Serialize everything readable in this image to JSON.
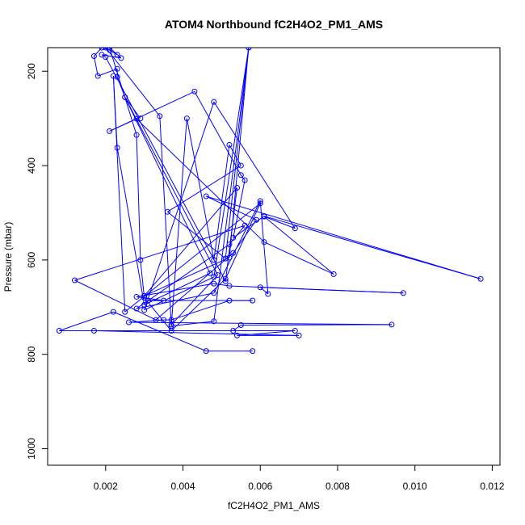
{
  "chart_data": {
    "type": "line",
    "title": "ATOM4 Northbound fC2H4O2_PM1_AMS",
    "xlabel": "fC2H4O2_PM1_AMS",
    "ylabel": "Pressure (mbar)",
    "xlim": [
      0.0005,
      0.0122
    ],
    "ylim": [
      1035,
      150
    ],
    "y_reversed": true,
    "grid": false,
    "markers": "open-circle",
    "line_color": "#0000ff",
    "x_ticks": [
      {
        "value": 0.002,
        "label": "0.002"
      },
      {
        "value": 0.004,
        "label": "0.004"
      },
      {
        "value": 0.006,
        "label": "0.006"
      },
      {
        "value": 0.008,
        "label": "0.008"
      },
      {
        "value": 0.01,
        "label": "0.010"
      },
      {
        "value": 0.012,
        "label": "0.012"
      }
    ],
    "y_ticks": [
      {
        "value": 200,
        "label": "200"
      },
      {
        "value": 400,
        "label": "400"
      },
      {
        "value": 600,
        "label": "600"
      },
      {
        "value": 800,
        "label": "800"
      },
      {
        "value": 1000,
        "label": "1000"
      }
    ],
    "series": [
      {
        "points": [
          [
            0.0058,
            793
          ],
          [
            0.0046,
            793
          ],
          [
            0.0022,
            710
          ],
          [
            0.0008,
            750
          ],
          [
            0.0069,
            750
          ],
          [
            0.0054,
            760
          ],
          [
            0.007,
            760
          ],
          [
            0.0017,
            750
          ],
          [
            0.0053,
            750
          ],
          [
            0.0055,
            738
          ],
          [
            0.0094,
            737
          ],
          [
            0.0026,
            732
          ],
          [
            0.0035,
            727
          ],
          [
            0.0037,
            727
          ],
          [
            0.0052,
            686
          ],
          [
            0.0058,
            686
          ],
          [
            0.0031,
            686
          ],
          [
            0.0035,
            686
          ],
          [
            0.0028,
            678
          ],
          [
            0.0048,
            650
          ],
          [
            0.0052,
            655
          ],
          [
            0.0097,
            670
          ],
          [
            0.006,
            658
          ],
          [
            0.0062,
            672
          ],
          [
            0.006,
            475
          ],
          [
            0.0048,
            670
          ],
          [
            0.0028,
            703
          ],
          [
            0.0052,
            567
          ],
          [
            0.0056,
            527
          ],
          [
            0.0012,
            643
          ],
          [
            0.0033,
            727
          ],
          [
            0.0053,
            585
          ],
          [
            0.0059,
            515
          ],
          [
            0.0046,
            465
          ],
          [
            0.0117,
            640
          ],
          [
            0.0061,
            507
          ],
          [
            0.0053,
            553
          ],
          [
            0.0056,
            431
          ],
          [
            0.0055,
            420
          ],
          [
            0.0043,
            243
          ],
          [
            0.0021,
            327
          ],
          [
            0.0028,
            301
          ],
          [
            0.0061,
            562
          ],
          [
            0.0079,
            630
          ],
          [
            0.0061,
            508
          ],
          [
            0.0069,
            533
          ],
          [
            0.0048,
            265
          ],
          [
            0.003,
            706
          ],
          [
            0.0048,
            636
          ],
          [
            0.0057,
            150
          ],
          [
            0.0051,
            597
          ],
          [
            0.0036,
            498
          ],
          [
            0.0055,
            400
          ],
          [
            0.0052,
            356
          ],
          [
            0.0048,
            600
          ],
          [
            0.0041,
            300
          ],
          [
            0.0037,
            737
          ],
          [
            0.0049,
            632
          ],
          [
            0.0025,
            255
          ],
          [
            0.0023,
            212
          ],
          [
            0.0023,
            195
          ],
          [
            0.0018,
            210
          ],
          [
            0.0017,
            168
          ],
          [
            0.0019,
            150
          ],
          [
            0.0021,
            155
          ],
          [
            0.0023,
            165
          ],
          [
            0.002,
            150
          ],
          [
            0.0034,
            295
          ],
          [
            0.0037,
            740
          ],
          [
            0.0048,
            730
          ],
          [
            0.0057,
            150
          ],
          [
            0.0052,
            595
          ],
          [
            0.003,
            676
          ],
          [
            0.0054,
            447
          ],
          [
            0.0051,
            645
          ],
          [
            0.002,
            170
          ],
          [
            0.0019,
            165
          ],
          [
            0.0024,
            172
          ],
          [
            0.0021,
            150
          ],
          [
            0.0028,
            335
          ],
          [
            0.0029,
            600
          ],
          [
            0.003,
            680
          ],
          [
            0.0037,
            750
          ],
          [
            0.0051,
            640
          ],
          [
            0.006,
            480
          ],
          [
            0.0025,
            710
          ],
          [
            0.0022,
            210
          ],
          [
            0.0023,
            362
          ],
          [
            0.003,
            695
          ],
          [
            0.0047,
            628
          ],
          [
            0.0025,
            255
          ],
          [
            0.0029,
            300
          ]
        ]
      }
    ]
  }
}
